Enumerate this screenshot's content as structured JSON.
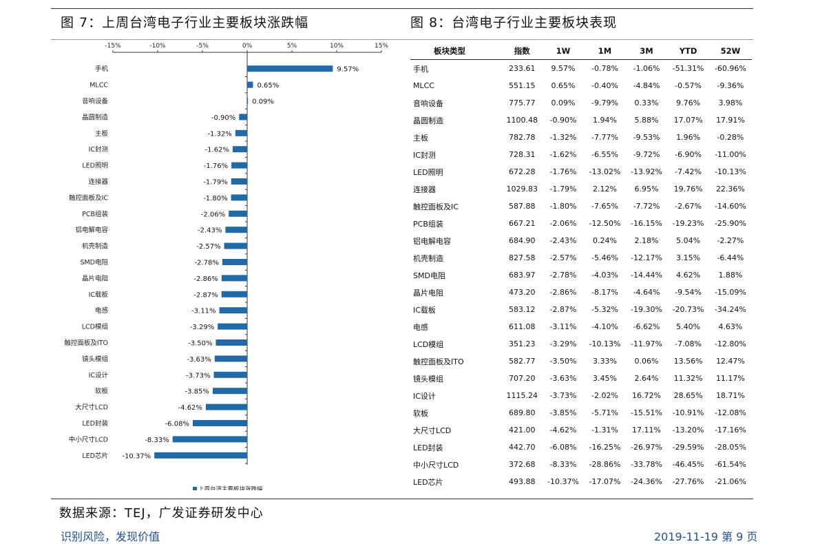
{
  "figures": {
    "left_title": "图 7：上周台湾电子行业主要板块涨跌幅",
    "right_title": "图 8：台湾电子行业主要板块表现"
  },
  "chart_data": {
    "type": "bar",
    "orientation": "horizontal",
    "categories": [
      "手机",
      "MLCC",
      "音响设备",
      "晶圆制造",
      "主板",
      "IC封测",
      "LED照明",
      "连接器",
      "触控面板及IC",
      "PCB组装",
      "铝电解电容",
      "机壳制造",
      "SMD电阻",
      "晶片电阻",
      "IC载板",
      "电感",
      "LCD模组",
      "触控面板及ITO",
      "镜头模组",
      "IC设计",
      "软板",
      "大尺寸LCD",
      "LED封装",
      "中小尺寸LCD",
      "LED芯片"
    ],
    "series": [
      {
        "name": "上周台湾主要板块涨跌幅",
        "values": [
          9.57,
          0.65,
          0.09,
          -0.9,
          -1.32,
          -1.62,
          -1.76,
          -1.79,
          -1.8,
          -2.06,
          -2.43,
          -2.57,
          -2.78,
          -2.86,
          -2.87,
          -3.11,
          -3.29,
          -3.5,
          -3.63,
          -3.73,
          -3.85,
          -4.62,
          -6.08,
          -8.33,
          -10.37
        ]
      }
    ],
    "value_labels": [
      "9.57%",
      "0.65%",
      "0.09%",
      "-0.90%",
      "-1.32%",
      "-1.62%",
      "-1.76%",
      "-1.79%",
      "-1.80%",
      "-2.06%",
      "-2.43%",
      "-2.57%",
      "-2.78%",
      "-2.86%",
      "-2.87%",
      "-3.11%",
      "-3.29%",
      "-3.50%",
      "-3.63%",
      "-3.73%",
      "-3.85%",
      "-4.62%",
      "-6.08%",
      "-8.33%",
      "-10.37%"
    ],
    "xlim": [
      -15,
      15
    ],
    "xticks": [
      -15,
      -10,
      -5,
      0,
      5,
      10,
      15
    ],
    "xtick_labels": [
      "-15%",
      "-10%",
      "-5%",
      "0%",
      "5%",
      "10%",
      "15%"
    ],
    "axis_position": "top",
    "legend_position": "bottom",
    "bar_color": "#1f6aa8"
  },
  "table": {
    "headers": [
      "板块类型",
      "指数",
      "1W",
      "1M",
      "3M",
      "YTD",
      "52W"
    ],
    "rows": [
      [
        "手机",
        "233.61",
        "9.57%",
        "-0.78%",
        "-1.06%",
        "-51.31%",
        "-60.96%"
      ],
      [
        "MLCC",
        "551.15",
        "0.65%",
        "-0.40%",
        "-4.84%",
        "-0.57%",
        "-9.36%"
      ],
      [
        "音响设备",
        "775.77",
        "0.09%",
        "-9.79%",
        "0.33%",
        "9.76%",
        "3.98%"
      ],
      [
        "晶圆制造",
        "1100.48",
        "-0.90%",
        "1.94%",
        "5.88%",
        "17.07%",
        "17.91%"
      ],
      [
        "主板",
        "782.78",
        "-1.32%",
        "-7.77%",
        "-9.53%",
        "1.96%",
        "-0.28%"
      ],
      [
        "IC封测",
        "728.31",
        "-1.62%",
        "-6.55%",
        "-9.72%",
        "-6.90%",
        "-11.00%"
      ],
      [
        "LED照明",
        "672.28",
        "-1.76%",
        "-13.02%",
        "-13.92%",
        "-7.42%",
        "-10.13%"
      ],
      [
        "连接器",
        "1029.83",
        "-1.79%",
        "2.12%",
        "6.95%",
        "19.76%",
        "22.36%"
      ],
      [
        "触控面板及IC",
        "587.88",
        "-1.80%",
        "-7.65%",
        "-7.72%",
        "-2.67%",
        "-14.60%"
      ],
      [
        "PCB组装",
        "667.21",
        "-2.06%",
        "-12.50%",
        "-16.15%",
        "-19.23%",
        "-25.90%"
      ],
      [
        "铝电解电容",
        "684.90",
        "-2.43%",
        "0.24%",
        "2.18%",
        "5.04%",
        "-2.27%"
      ],
      [
        "机壳制造",
        "827.58",
        "-2.57%",
        "-5.46%",
        "-12.17%",
        "3.15%",
        "-6.44%"
      ],
      [
        "SMD电阻",
        "683.97",
        "-2.78%",
        "-4.03%",
        "-14.44%",
        "4.62%",
        "1.88%"
      ],
      [
        "晶片电阻",
        "473.20",
        "-2.86%",
        "-8.17%",
        "-4.64%",
        "-9.54%",
        "-15.09%"
      ],
      [
        "IC载板",
        "583.12",
        "-2.87%",
        "-5.32%",
        "-19.30%",
        "-20.73%",
        "-34.24%"
      ],
      [
        "电感",
        "611.08",
        "-3.11%",
        "-4.10%",
        "-6.62%",
        "5.40%",
        "4.63%"
      ],
      [
        "LCD模组",
        "351.23",
        "-3.29%",
        "-10.13%",
        "-11.97%",
        "-7.08%",
        "-12.80%"
      ],
      [
        "触控面板及ITO",
        "582.77",
        "-3.50%",
        "3.33%",
        "0.06%",
        "13.56%",
        "12.47%"
      ],
      [
        "镜头模组",
        "707.20",
        "-3.63%",
        "3.45%",
        "2.64%",
        "11.32%",
        "11.17%"
      ],
      [
        "IC设计",
        "1115.24",
        "-3.73%",
        "-2.02%",
        "16.72%",
        "28.65%",
        "18.71%"
      ],
      [
        "软板",
        "689.80",
        "-3.85%",
        "-5.71%",
        "-15.51%",
        "-10.91%",
        "-12.08%"
      ],
      [
        "大尺寸LCD",
        "421.00",
        "-4.62%",
        "-1.31%",
        "17.11%",
        "-13.20%",
        "-17.16%"
      ],
      [
        "LED封装",
        "442.70",
        "-6.08%",
        "-16.25%",
        "-26.97%",
        "-29.59%",
        "-28.05%"
      ],
      [
        "中小尺寸LCD",
        "372.68",
        "-8.33%",
        "-28.86%",
        "-33.78%",
        "-46.45%",
        "-61.54%"
      ],
      [
        "LED芯片",
        "493.88",
        "-10.37%",
        "-17.07%",
        "-24.36%",
        "-27.76%",
        "-21.06%"
      ]
    ]
  },
  "source": "数据来源：TEJ，广发证券研发中心",
  "footer": {
    "left": "识别风险，发现价值",
    "right": "2019-11-19  第 9 页"
  }
}
